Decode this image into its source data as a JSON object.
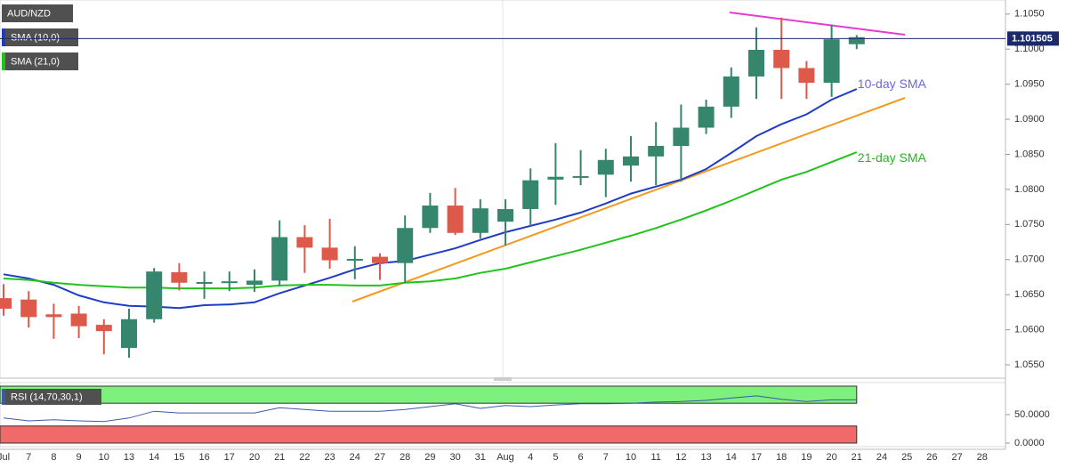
{
  "chart_data": {
    "type": "candlestick",
    "title": "AUD/NZD",
    "categories": [
      "Jul",
      "7",
      "8",
      "9",
      "10",
      "13",
      "14",
      "15",
      "16",
      "17",
      "20",
      "21",
      "22",
      "23",
      "24",
      "27",
      "28",
      "29",
      "30",
      "31",
      "Aug",
      "4",
      "5",
      "6",
      "7",
      "10",
      "11",
      "12",
      "13",
      "14",
      "17",
      "18",
      "19",
      "20",
      "21",
      "24",
      "25",
      "26",
      "27",
      "28"
    ],
    "open": [
      1.0645,
      1.0643,
      1.0622,
      1.0623,
      1.0607,
      1.0574,
      1.0615,
      1.0682,
      1.0667,
      1.0668,
      1.0664,
      1.067,
      1.0732,
      1.0717,
      1.07,
      1.0704,
      1.0695,
      1.0745,
      1.0777,
      1.0738,
      1.0754,
      1.0772,
      1.0814,
      1.0818,
      1.0821,
      1.0834,
      1.0847,
      1.0862,
      1.0888,
      1.0918,
      1.0961,
      1.0999,
      1.0973,
      1.0952,
      1.1007,
      null,
      null,
      null,
      null,
      null
    ],
    "high": [
      1.0665,
      1.0655,
      1.0637,
      1.0634,
      1.0615,
      1.063,
      1.0688,
      1.0695,
      1.0683,
      1.0683,
      1.0686,
      1.0756,
      1.0749,
      1.0758,
      1.0719,
      1.0709,
      1.0763,
      1.0795,
      1.0802,
      1.0786,
      1.0786,
      1.083,
      1.0866,
      1.0856,
      1.0858,
      1.0876,
      1.0896,
      1.0921,
      1.0928,
      1.0974,
      1.1031,
      1.1045,
      1.0983,
      1.1035,
      1.102,
      null,
      null,
      null,
      null,
      null
    ],
    "low": [
      1.062,
      1.0603,
      1.0587,
      1.0588,
      1.0565,
      1.056,
      1.061,
      1.0656,
      1.0644,
      1.0655,
      1.0654,
      1.0662,
      1.0681,
      1.0687,
      1.0672,
      1.0671,
      1.0667,
      1.0738,
      1.0735,
      1.073,
      1.072,
      1.0748,
      1.0778,
      1.0806,
      1.0789,
      1.0811,
      1.0806,
      1.0811,
      1.0879,
      1.0902,
      1.0929,
      1.0929,
      1.0929,
      1.0932,
      1.1,
      null,
      null,
      null,
      null,
      null
    ],
    "close": [
      1.063,
      1.0618,
      1.0618,
      1.0605,
      1.0598,
      1.0615,
      1.0683,
      1.0667,
      1.0668,
      1.0669,
      1.067,
      1.0732,
      1.0717,
      1.0699,
      1.0701,
      1.0695,
      1.0745,
      1.0777,
      1.0738,
      1.0773,
      1.0772,
      1.0813,
      1.0818,
      1.0819,
      1.0842,
      1.0847,
      1.0862,
      1.0888,
      1.0918,
      1.0961,
      1.0999,
      1.0973,
      1.0952,
      1.1014,
      1.1017,
      null,
      null,
      null,
      null,
      null
    ],
    "up_color": "#35866c",
    "down_color": "#dd5a4b",
    "series": [
      {
        "name": "SMA (10,0)",
        "color": "#1f3cc4",
        "values": [
          1.0679,
          1.0673,
          1.0664,
          1.0649,
          1.0639,
          1.0634,
          1.0633,
          1.0631,
          1.0635,
          1.0636,
          1.0639,
          1.0652,
          1.0663,
          1.0674,
          1.0686,
          1.0695,
          1.0698,
          1.0707,
          1.0716,
          1.0728,
          1.0739,
          1.0748,
          1.0757,
          1.0767,
          1.078,
          1.0794,
          1.0804,
          1.0814,
          1.0829,
          1.0852,
          1.0876,
          1.0893,
          1.0907,
          1.0928,
          1.0943,
          null,
          null,
          null,
          null,
          null
        ]
      },
      {
        "name": "SMA (21,0)",
        "color": "#22c21c",
        "values": [
          1.0673,
          1.0671,
          1.0667,
          1.0664,
          1.0662,
          1.066,
          1.066,
          1.0659,
          1.0659,
          1.0659,
          1.066,
          1.0663,
          1.0664,
          1.0664,
          1.0663,
          1.0663,
          1.0667,
          1.0669,
          1.0673,
          1.0681,
          1.0687,
          1.0696,
          1.0705,
          1.0714,
          1.0724,
          1.0734,
          1.0745,
          1.0757,
          1.077,
          1.0784,
          1.0799,
          1.0814,
          1.0825,
          1.0839,
          1.0853,
          null,
          null,
          null,
          null,
          null
        ]
      }
    ],
    "annotations": [
      "10-day SMA",
      "21-day SMA"
    ],
    "current_price": 1.101505,
    "ylim": [
      1.0531,
      1.107
    ],
    "yticks": [
      {
        "value": 1.105,
        "label": "1.1050"
      },
      {
        "value": 1.1,
        "label": "1.1000"
      },
      {
        "value": 1.095,
        "label": "1.0950"
      },
      {
        "value": 1.09,
        "label": "1.0900"
      },
      {
        "value": 1.085,
        "label": "1.0850"
      },
      {
        "value": 1.08,
        "label": "1.0800"
      },
      {
        "value": 1.075,
        "label": "1.0750"
      },
      {
        "value": 1.07,
        "label": "1.0700"
      },
      {
        "value": 1.065,
        "label": "1.0650"
      },
      {
        "value": 1.06,
        "label": "1.0600"
      },
      {
        "value": 1.055,
        "label": "1.0550"
      }
    ],
    "rsi": {
      "name": "RSI (14,70,30,1)",
      "color": "#3a5aa8",
      "values": [
        44,
        39,
        41,
        39,
        38,
        44,
        56,
        53,
        53,
        53,
        53,
        62,
        59,
        56,
        56,
        56,
        59,
        64,
        69,
        61,
        66,
        64,
        67,
        69,
        69,
        70,
        72,
        73,
        75,
        79,
        83,
        77,
        73,
        76,
        76,
        null,
        null,
        null,
        null,
        null
      ],
      "ylim": [
        0,
        100
      ],
      "yticks": [
        {
          "value": 50,
          "label": "50.0000"
        },
        {
          "value": 0,
          "label": "0.0000"
        }
      ],
      "overbought": 70,
      "oversold": 30
    }
  }
}
